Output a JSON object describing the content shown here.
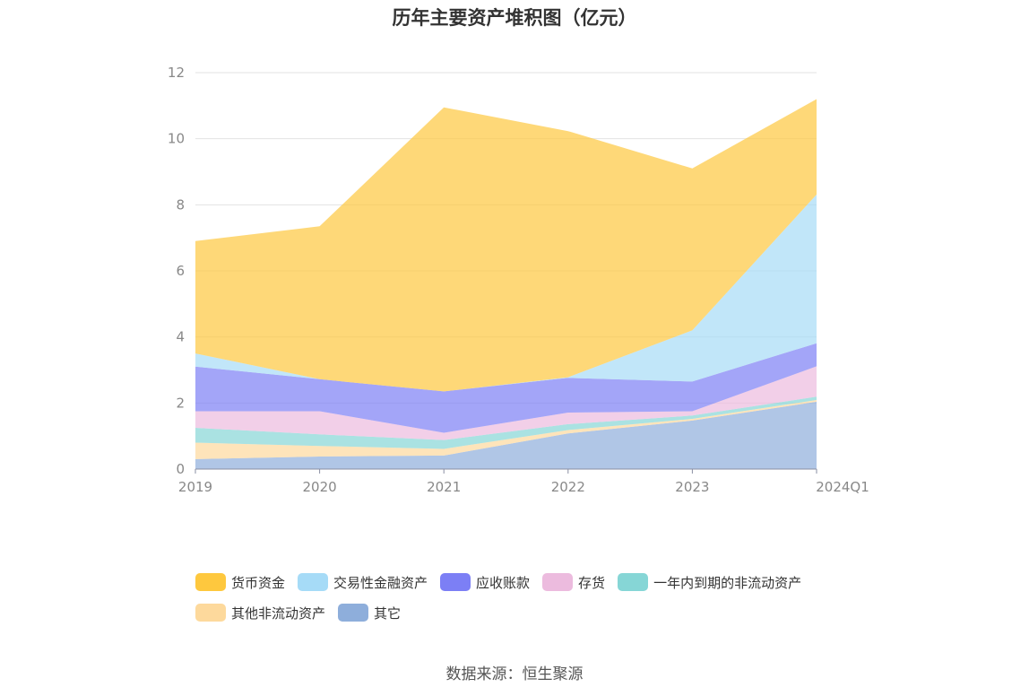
{
  "page": {
    "title": "历年主要资产堆积图（亿元）",
    "source": "数据来源：恒生聚源"
  },
  "chart_data": {
    "type": "area",
    "stacked": true,
    "title": "历年主要资产堆积图（亿元）",
    "categories": [
      "2019",
      "2020",
      "2021",
      "2022",
      "2023",
      "2024Q1"
    ],
    "ylim": [
      0,
      12
    ],
    "yticks": [
      0,
      2,
      4,
      6,
      8,
      10,
      12
    ],
    "grid": true,
    "legend_position": "bottom",
    "series": [
      {
        "name": "其它",
        "color": "#8eaedb",
        "values": [
          0.3,
          0.38,
          0.41,
          1.08,
          1.47,
          2.04
        ]
      },
      {
        "name": "其他非流动资产",
        "color": "#fdd99c",
        "values": [
          0.5,
          0.32,
          0.2,
          0.1,
          0.05,
          0.05
        ]
      },
      {
        "name": "一年内到期的非流动资产",
        "color": "#86d6d6",
        "values": [
          0.45,
          0.35,
          0.27,
          0.18,
          0.1,
          0.1
        ]
      },
      {
        "name": "存货",
        "color": "#ecbbde",
        "values": [
          0.5,
          0.7,
          0.22,
          0.35,
          0.13,
          0.92
        ]
      },
      {
        "name": "应收账款",
        "color": "#7c7ff5",
        "values": [
          1.35,
          0.97,
          1.25,
          1.05,
          0.9,
          0.7
        ]
      },
      {
        "name": "交易性金融资产",
        "color": "#a6dbf7",
        "values": [
          0.4,
          0.0,
          0.0,
          0.02,
          1.55,
          4.5
        ]
      },
      {
        "name": "货币资金",
        "color": "#fec83e",
        "values": [
          3.4,
          4.63,
          8.6,
          7.45,
          4.9,
          2.89
        ]
      }
    ]
  }
}
